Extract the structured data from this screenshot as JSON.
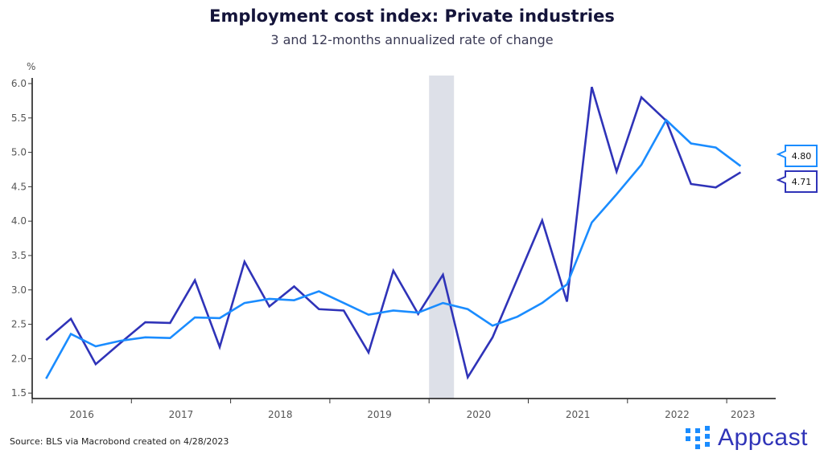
{
  "chart_data": {
    "type": "line",
    "title": "Employment cost index: Private industries",
    "subtitle": "3 and 12-months annualized rate of change",
    "ylabel": "%",
    "xlabel": "",
    "ylim": [
      1.5,
      6.0
    ],
    "yticks": [
      "1.5",
      "2.0",
      "2.5",
      "3.0",
      "3.5",
      "4.0",
      "4.5",
      "5.0",
      "5.5",
      "6.0"
    ],
    "xticks": [
      "2016",
      "2017",
      "2018",
      "2019",
      "2020",
      "2021",
      "2022",
      "2023"
    ],
    "grid": false,
    "x": [
      "2016Q1",
      "2016Q2",
      "2016Q3",
      "2016Q4",
      "2017Q1",
      "2017Q2",
      "2017Q3",
      "2017Q4",
      "2018Q1",
      "2018Q2",
      "2018Q3",
      "2018Q4",
      "2019Q1",
      "2019Q2",
      "2019Q3",
      "2019Q4",
      "2020Q1",
      "2020Q2",
      "2020Q3",
      "2020Q4",
      "2021Q1",
      "2021Q2",
      "2021Q3",
      "2021Q4",
      "2022Q1",
      "2022Q2",
      "2022Q3",
      "2022Q4",
      "2023Q1"
    ],
    "series": [
      {
        "color": "#2f33b8",
        "values": [
          2.27,
          2.58,
          1.92,
          2.23,
          2.53,
          2.52,
          3.14,
          2.17,
          3.41,
          2.76,
          3.05,
          2.72,
          2.7,
          2.09,
          3.28,
          2.65,
          3.22,
          1.73,
          2.31,
          3.16,
          4.01,
          2.83,
          5.95,
          4.72,
          5.8,
          5.46,
          4.54,
          4.49,
          4.71
        ],
        "last_label": "4.71"
      },
      {
        "color": "#1a8cff",
        "values": [
          1.71,
          2.36,
          2.18,
          2.26,
          2.31,
          2.3,
          2.6,
          2.59,
          2.81,
          2.87,
          2.85,
          2.98,
          2.81,
          2.64,
          2.7,
          2.67,
          2.81,
          2.72,
          2.48,
          2.61,
          2.81,
          3.08,
          3.98,
          4.39,
          4.82,
          5.47,
          5.13,
          5.07,
          4.8
        ],
        "last_label": "4.80"
      }
    ],
    "recession_shading": {
      "start": "2020Q1",
      "end": "2020Q1",
      "color": "#dde0e8"
    }
  },
  "footer": {
    "source": "Source: BLS via Macrobond created on 4/28/2023",
    "logo_text": "Appcast",
    "logo_mark": "TM"
  }
}
